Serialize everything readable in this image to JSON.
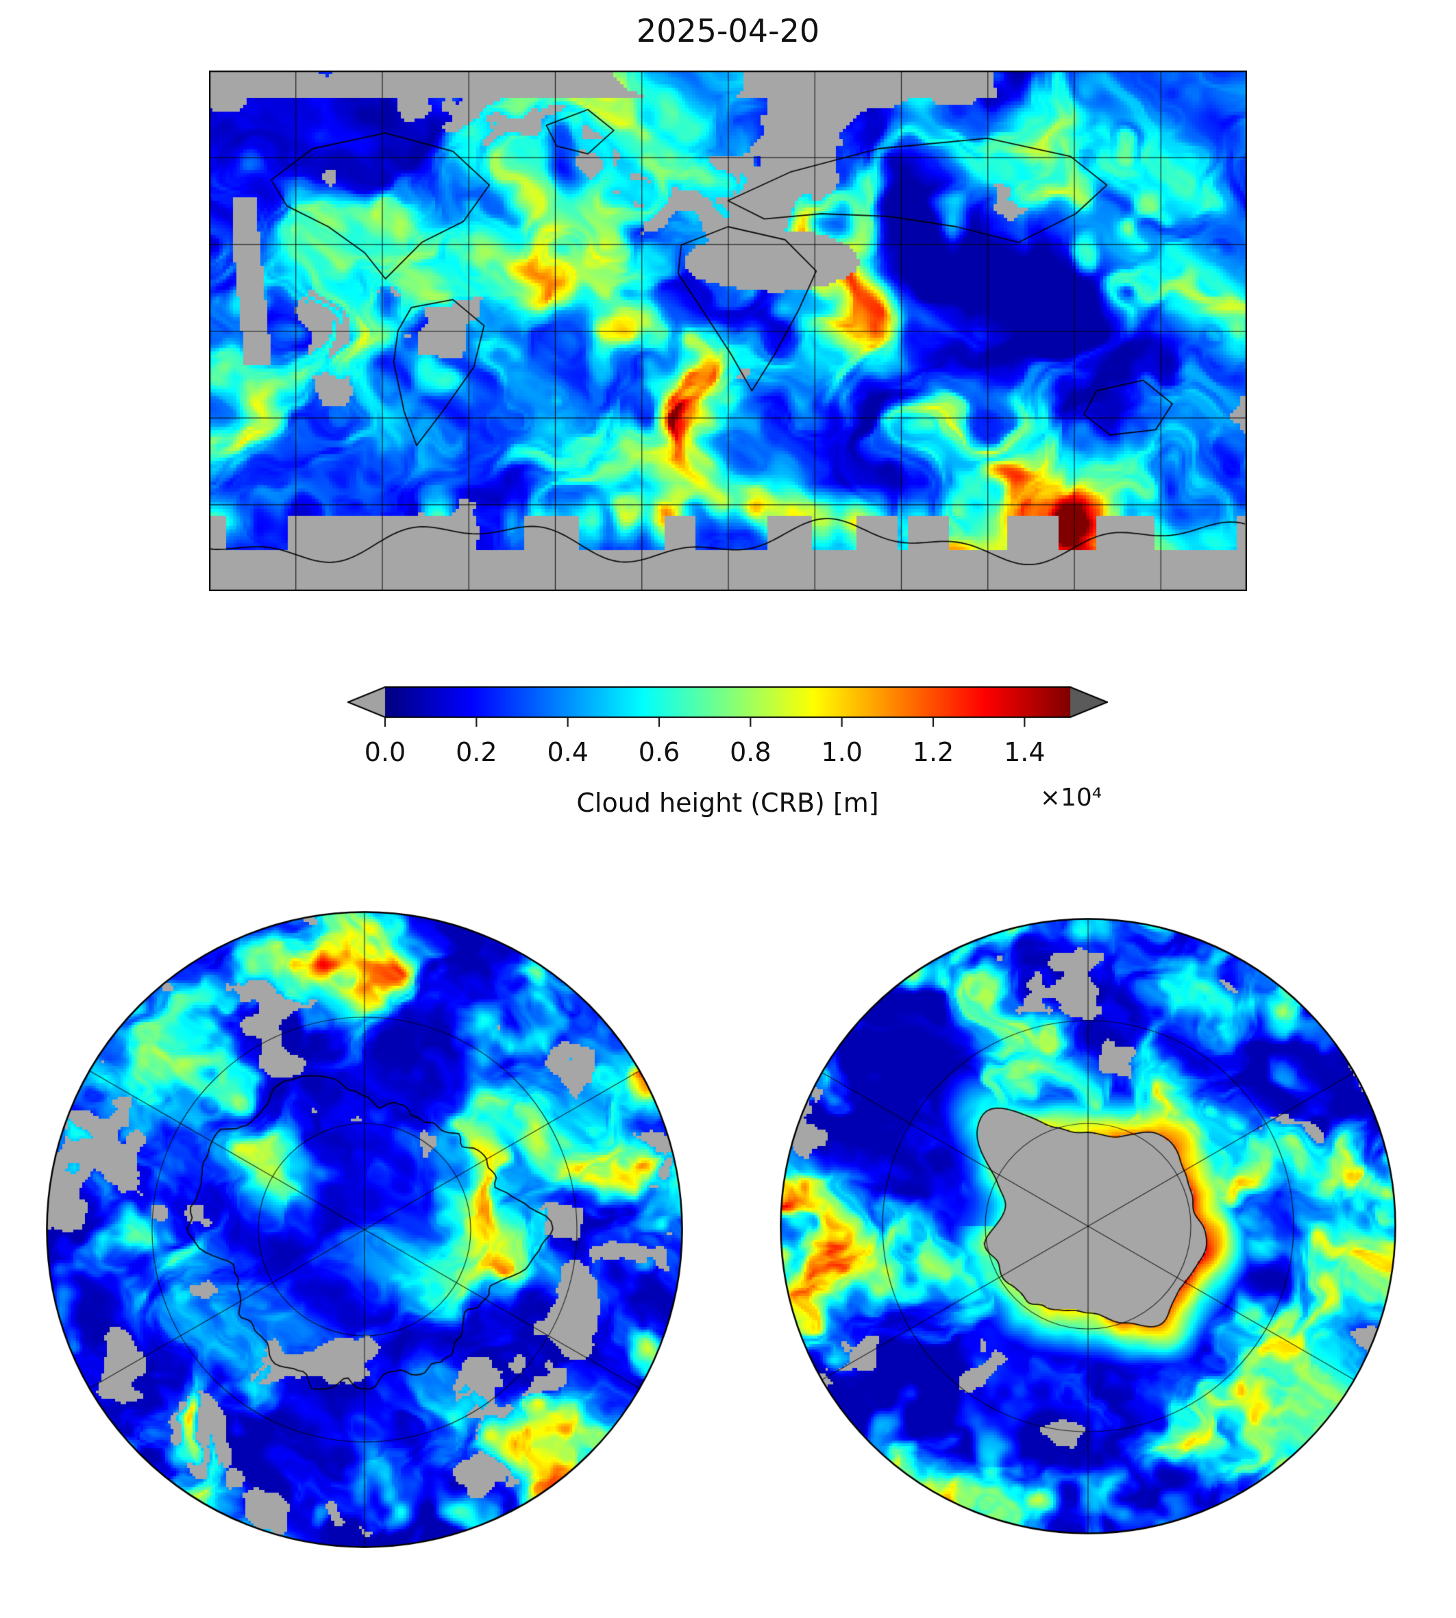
{
  "figure": {
    "title": "2025-04-20",
    "colorbar": {
      "label": "Cloud height (CRB) [m]",
      "multiplier": "×10⁴",
      "ticks": [
        "0.0",
        "0.2",
        "0.4",
        "0.6",
        "0.8",
        "1.0",
        "1.2",
        "1.4"
      ],
      "tick_scale_max": 1.5,
      "under_color": "#a2a2a2",
      "over_color": "#5a5a5a",
      "missing_color": "#a6a6a6"
    }
  },
  "chart_data": {
    "type": "heatmap",
    "title": "2025-04-20",
    "variable": "Cloud height (CRB)",
    "units": "m",
    "value_range": [
      0,
      15000
    ],
    "colormap": "jet",
    "missing_data_color": "gray",
    "colorbar": {
      "label": "Cloud height (CRB) [m]",
      "ticks": [
        0.0,
        0.2,
        0.4,
        0.6,
        0.8,
        1.0,
        1.2,
        1.4
      ],
      "tick_multiplier": 10000,
      "extend": "both",
      "orientation": "horizontal"
    },
    "panels": [
      {
        "name": "global-map",
        "projection": "equirectangular",
        "graticule_deg": 30,
        "notes": "gray band over Antarctica = missing data; high (yellow/orange) clouds along Antarctic coast and tropics"
      },
      {
        "name": "north-polar",
        "projection": "polar azimuthal (Arctic)",
        "grid": "concentric latitude circles + 60° meridians"
      },
      {
        "name": "south-polar",
        "projection": "polar azimuthal (Antarctic)",
        "grid": "concentric latitude circles + 60° meridians",
        "notes": "central gray disk = missing data over Antarctica, orange/red arc on its eastern edge"
      }
    ]
  }
}
